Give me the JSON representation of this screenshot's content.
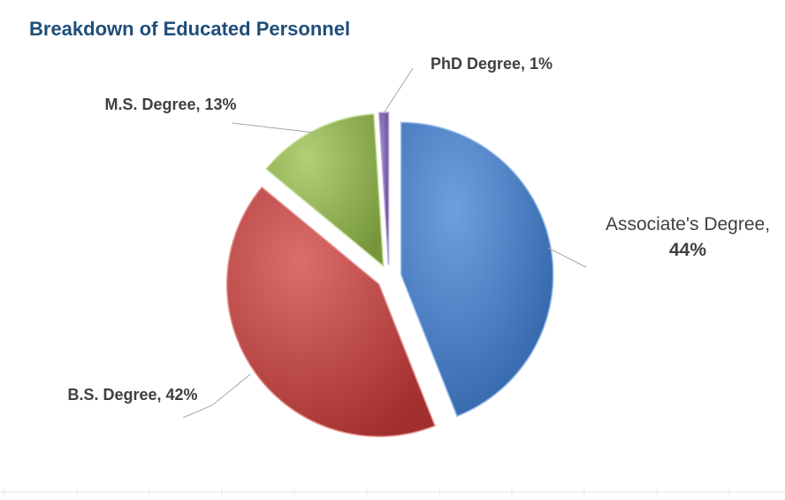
{
  "chart_data": {
    "type": "pie",
    "title": "Breakdown of Educated Personnel",
    "categories": [
      "Associate's Degree",
      "B.S. Degree",
      "M.S. Degree",
      "PhD Degree"
    ],
    "values": [
      44,
      42,
      13,
      1
    ],
    "unit": "%",
    "colors": [
      "#3E7FD6",
      "#CF3C3A",
      "#97C04A",
      "#7A59B6"
    ],
    "exploded": true,
    "legend": "none",
    "data_labels": [
      "Associate's Degree, 44%",
      "B.S. Degree, 42%",
      "M.S. Degree, 13%",
      "PhD Degree, 1%"
    ]
  }
}
